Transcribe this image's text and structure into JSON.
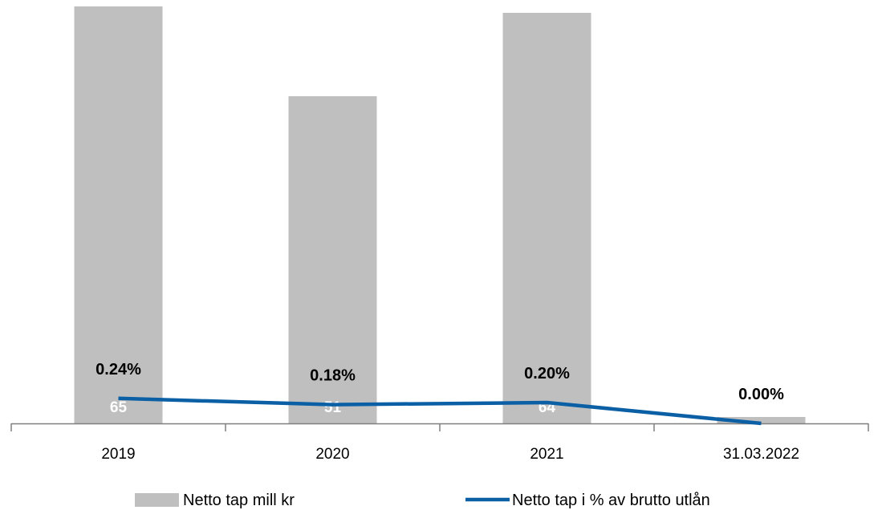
{
  "chart_data": {
    "type": "bar",
    "categories": [
      "2019",
      "2020",
      "2021",
      "31.03.2022"
    ],
    "series": [
      {
        "name": "Netto tap mill kr",
        "type": "bar",
        "values": [
          65,
          51,
          64,
          1
        ],
        "data_labels": [
          "65",
          "51",
          "64",
          ""
        ],
        "color": "#bfbfbf"
      },
      {
        "name": "Netto tap i % av brutto utlån",
        "type": "line",
        "values": [
          0.24,
          0.18,
          0.2,
          0.0
        ],
        "data_labels": [
          "0.24%",
          "0.18%",
          "0.20%",
          "0.00%"
        ],
        "color": "#0b5fa5"
      }
    ],
    "title": "",
    "xlabel": "",
    "ylabel": "",
    "ylim_bar": [
      0,
      65
    ],
    "ylim_line": [
      0,
      4
    ],
    "grid": false,
    "legend": "bottom"
  }
}
